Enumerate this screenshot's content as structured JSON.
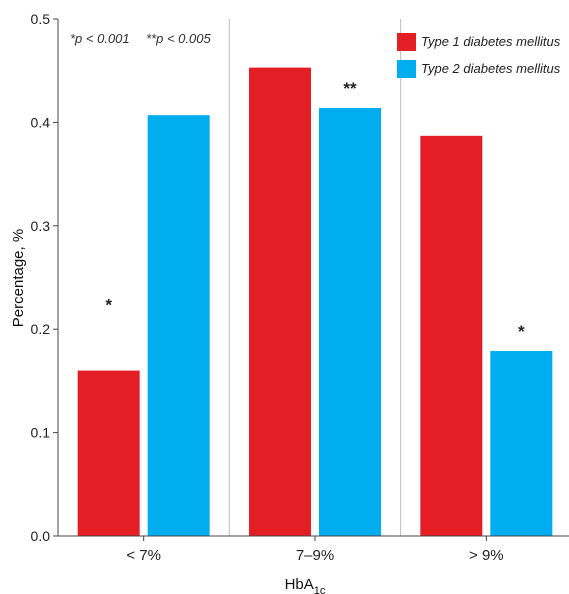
{
  "chart_data": {
    "type": "bar",
    "categories": [
      "< 7%",
      "7–9%",
      "> 9%"
    ],
    "series": [
      {
        "name": "Type 1 diabetes mellitus",
        "color": "#e31e24",
        "values": [
          0.16,
          0.453,
          0.387
        ]
      },
      {
        "name": "Type 2 diabetes mellitus",
        "color": "#00aeef",
        "values": [
          0.407,
          0.414,
          0.179
        ]
      }
    ],
    "ylim": [
      0,
      0.5
    ],
    "yticks": [
      "0.0",
      "0.1",
      "0.2",
      "0.3",
      "0.4",
      "0.5"
    ],
    "ytick_values": [
      0,
      0.1,
      0.2,
      0.3,
      0.4,
      0.5
    ],
    "ylabel": "Percentage, %",
    "xlabel": {
      "main": "HbA",
      "sub": "1c"
    },
    "annotations": {
      "p_notes": [
        "*p < 0.001",
        "**p < 0.005"
      ],
      "markers": [
        {
          "category": 0,
          "series": 0,
          "text": "*"
        },
        {
          "category": 1,
          "series": 1,
          "text": "**"
        },
        {
          "category": 2,
          "series": 1,
          "text": "*"
        }
      ]
    },
    "legend_position": "top-right",
    "grid": "vertical separators between categories"
  }
}
